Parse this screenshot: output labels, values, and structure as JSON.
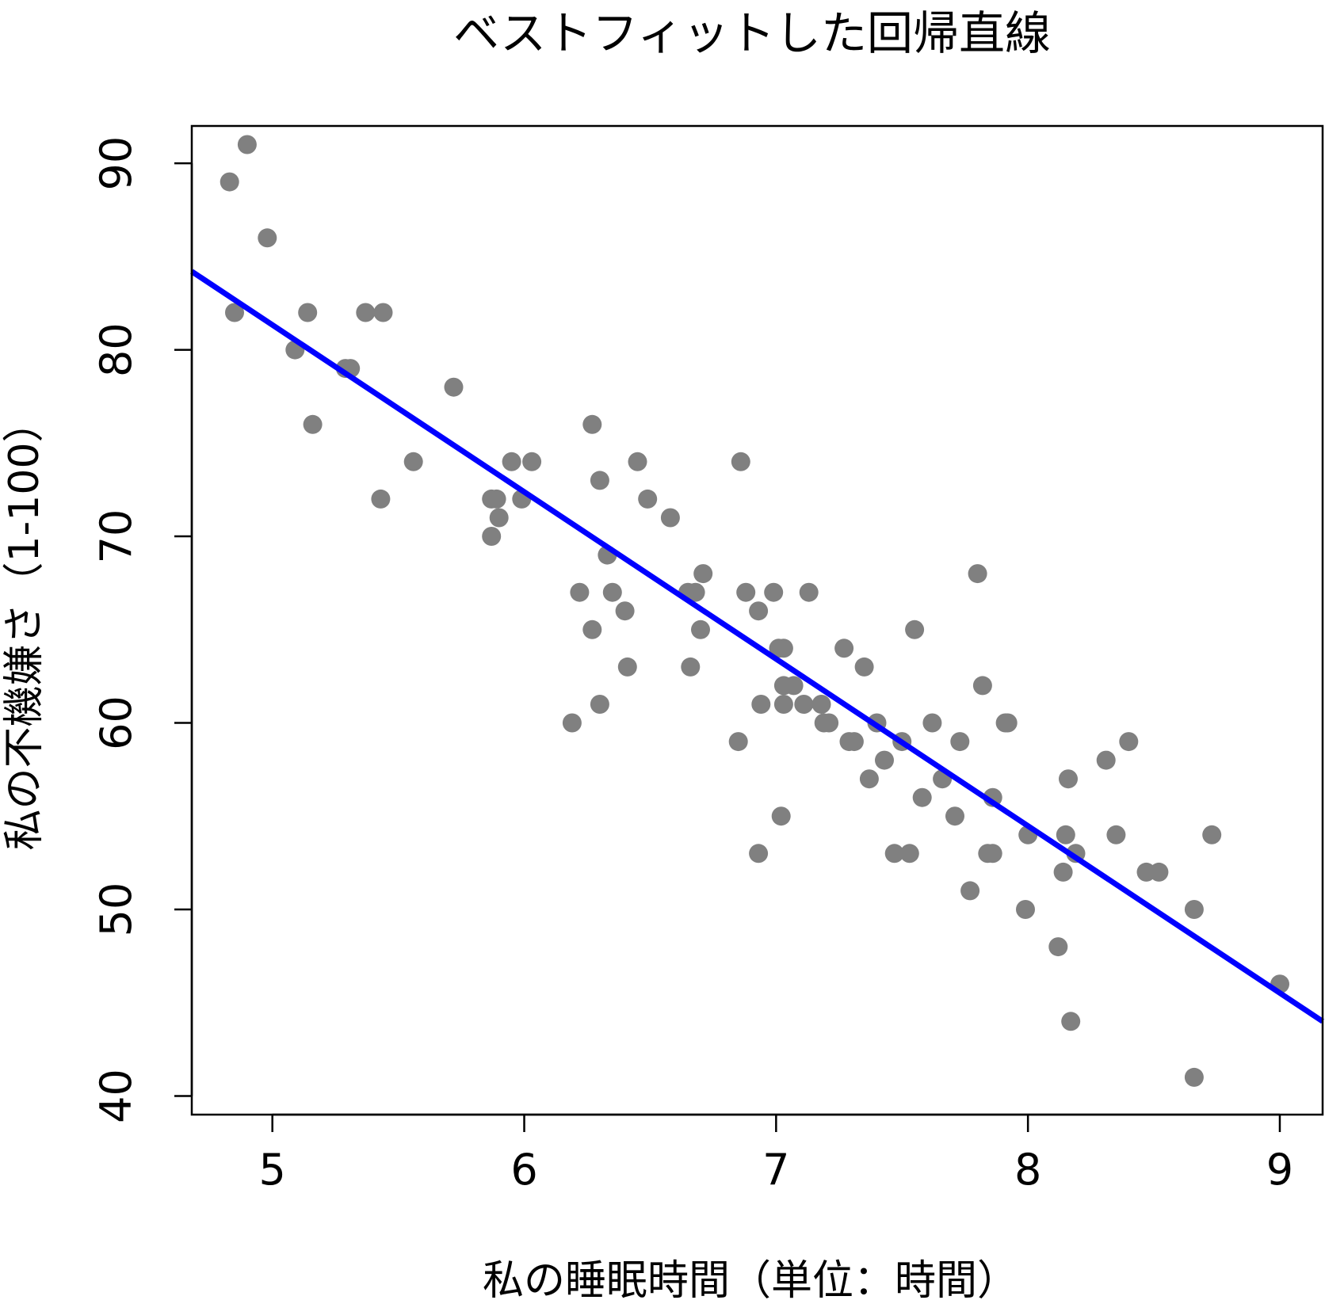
{
  "chart_data": {
    "type": "scatter",
    "title": "ベストフィットした回帰直線",
    "xlabel": "私の睡眠時間（単位：時間）",
    "ylabel": "私の不機嫌さ（1-100）",
    "xlim": [
      4.68,
      9.17
    ],
    "ylim": [
      39.0,
      92.0
    ],
    "x_ticks": [
      5,
      6,
      7,
      8,
      9
    ],
    "y_ticks": [
      40,
      50,
      60,
      70,
      80,
      90
    ],
    "grid": false,
    "legend": "none",
    "point_color": "#808080",
    "line_color": "#0000ff",
    "regression_line": {
      "x": [
        4.68,
        9.17
      ],
      "y": [
        84.2,
        44.0
      ]
    },
    "points": [
      [
        4.83,
        89
      ],
      [
        4.9,
        91
      ],
      [
        4.85,
        82
      ],
      [
        4.98,
        86
      ],
      [
        5.09,
        80
      ],
      [
        5.14,
        82
      ],
      [
        5.16,
        76
      ],
      [
        5.31,
        79
      ],
      [
        5.29,
        79
      ],
      [
        5.37,
        82
      ],
      [
        5.44,
        82
      ],
      [
        5.43,
        72
      ],
      [
        5.56,
        74
      ],
      [
        5.72,
        78
      ],
      [
        5.87,
        72
      ],
      [
        5.89,
        72
      ],
      [
        5.87,
        70
      ],
      [
        5.9,
        71
      ],
      [
        5.95,
        74
      ],
      [
        5.99,
        72
      ],
      [
        6.03,
        74
      ],
      [
        6.19,
        60
      ],
      [
        6.22,
        67
      ],
      [
        6.27,
        76
      ],
      [
        6.27,
        65
      ],
      [
        6.3,
        73
      ],
      [
        6.3,
        61
      ],
      [
        6.33,
        69
      ],
      [
        6.35,
        67
      ],
      [
        6.4,
        66
      ],
      [
        6.41,
        63
      ],
      [
        6.45,
        74
      ],
      [
        6.49,
        72
      ],
      [
        6.58,
        71
      ],
      [
        6.65,
        67
      ],
      [
        6.66,
        63
      ],
      [
        6.68,
        67
      ],
      [
        6.7,
        65
      ],
      [
        6.71,
        68
      ],
      [
        6.85,
        59
      ],
      [
        6.86,
        74
      ],
      [
        6.88,
        67
      ],
      [
        6.93,
        66
      ],
      [
        6.94,
        61
      ],
      [
        6.93,
        53
      ],
      [
        6.99,
        67
      ],
      [
        7.01,
        64
      ],
      [
        7.03,
        64
      ],
      [
        7.02,
        55
      ],
      [
        7.03,
        62
      ],
      [
        7.03,
        61
      ],
      [
        7.07,
        62
      ],
      [
        7.11,
        61
      ],
      [
        7.13,
        67
      ],
      [
        7.18,
        61
      ],
      [
        7.19,
        60
      ],
      [
        7.21,
        60
      ],
      [
        7.27,
        64
      ],
      [
        7.29,
        59
      ],
      [
        7.31,
        59
      ],
      [
        7.35,
        63
      ],
      [
        7.37,
        57
      ],
      [
        7.4,
        60
      ],
      [
        7.43,
        58
      ],
      [
        7.47,
        53
      ],
      [
        7.5,
        59
      ],
      [
        7.53,
        53
      ],
      [
        7.55,
        65
      ],
      [
        7.58,
        56
      ],
      [
        7.62,
        60
      ],
      [
        7.66,
        57
      ],
      [
        7.71,
        55
      ],
      [
        7.73,
        59
      ],
      [
        7.77,
        51
      ],
      [
        7.8,
        68
      ],
      [
        7.82,
        62
      ],
      [
        7.84,
        53
      ],
      [
        7.86,
        56
      ],
      [
        7.86,
        53
      ],
      [
        7.91,
        60
      ],
      [
        7.92,
        60
      ],
      [
        7.99,
        50
      ],
      [
        8.0,
        54
      ],
      [
        8.12,
        48
      ],
      [
        8.14,
        52
      ],
      [
        8.15,
        54
      ],
      [
        8.16,
        57
      ],
      [
        8.17,
        44
      ],
      [
        8.19,
        53
      ],
      [
        8.31,
        58
      ],
      [
        8.35,
        54
      ],
      [
        8.4,
        59
      ],
      [
        8.47,
        52
      ],
      [
        8.52,
        52
      ],
      [
        8.66,
        50
      ],
      [
        8.66,
        41
      ],
      [
        8.73,
        54
      ],
      [
        9.0,
        46
      ]
    ]
  }
}
